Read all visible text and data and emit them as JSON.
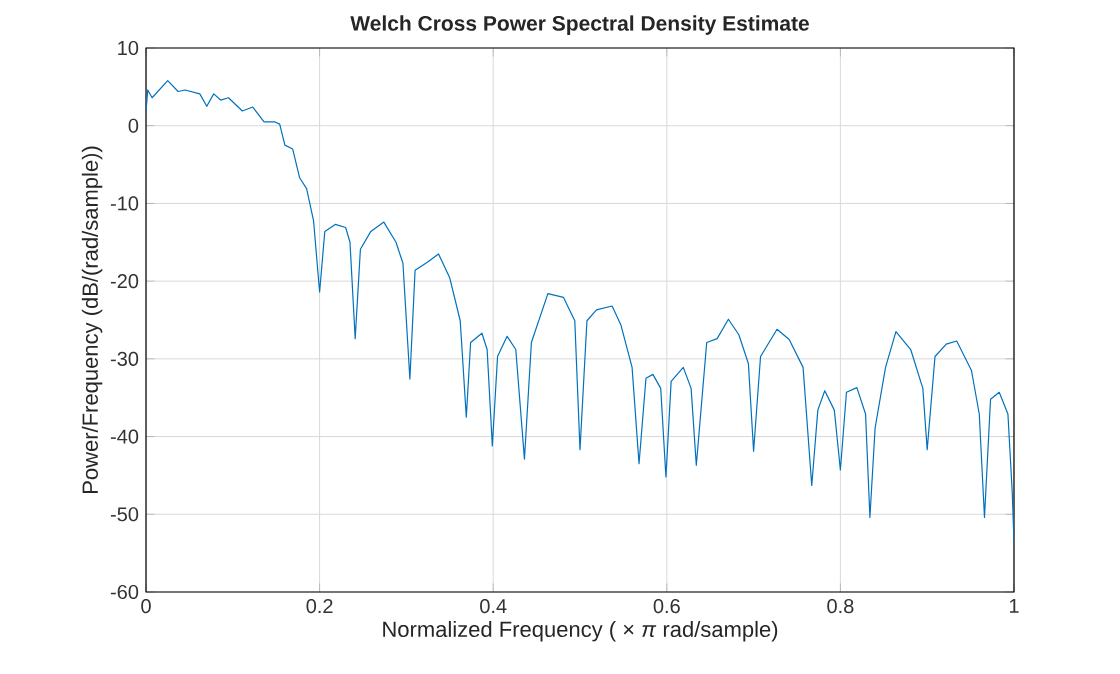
{
  "chart_data": {
    "type": "line",
    "title": "Welch Cross Power Spectral Density Estimate",
    "xlabel": "Normalized Frequency ( × *π* rad/sample)",
    "ylabel": "Power/Frequency (dB/(rad/sample))",
    "xlim": [
      0,
      1
    ],
    "ylim": [
      -60,
      10
    ],
    "xticks": [
      0,
      0.2,
      0.4,
      0.6,
      0.8,
      1
    ],
    "yticks": [
      -60,
      -50,
      -40,
      -30,
      -20,
      -10,
      0,
      10
    ],
    "grid": true,
    "series": [
      {
        "color": "#0072bd",
        "x": [
          0,
          0.002,
          0.007,
          0.025,
          0.037,
          0.045,
          0.062,
          0.07,
          0.078,
          0.086,
          0.095,
          0.111,
          0.123,
          0.136,
          0.148,
          0.154,
          0.16,
          0.169,
          0.177,
          0.185,
          0.193,
          0.2,
          0.206,
          0.218,
          0.23,
          0.235,
          0.241,
          0.247,
          0.259,
          0.274,
          0.288,
          0.296,
          0.304,
          0.31,
          0.325,
          0.337,
          0.35,
          0.362,
          0.369,
          0.374,
          0.387,
          0.393,
          0.399,
          0.405,
          0.416,
          0.426,
          0.436,
          0.444,
          0.463,
          0.481,
          0.494,
          0.5,
          0.508,
          0.519,
          0.537,
          0.547,
          0.56,
          0.568,
          0.576,
          0.584,
          0.593,
          0.599,
          0.605,
          0.619,
          0.628,
          0.634,
          0.646,
          0.658,
          0.671,
          0.683,
          0.694,
          0.7,
          0.708,
          0.727,
          0.741,
          0.757,
          0.767,
          0.774,
          0.782,
          0.793,
          0.8,
          0.807,
          0.819,
          0.829,
          0.834,
          0.84,
          0.852,
          0.864,
          0.881,
          0.895,
          0.9,
          0.909,
          0.922,
          0.934,
          0.951,
          0.96,
          0.966,
          0.973,
          0.983,
          0.993,
          0.998,
          1
        ],
        "values": [
          1.8,
          4.6,
          3.6,
          5.8,
          4.4,
          4.6,
          4.1,
          2.5,
          4.1,
          3.3,
          3.6,
          1.9,
          2.4,
          0.5,
          0.5,
          0.2,
          -2.5,
          -3,
          -6.7,
          -8.1,
          -12.2,
          -21.4,
          -13.6,
          -12.7,
          -13.1,
          -15,
          -27.4,
          -15.9,
          -13.6,
          -12.4,
          -15,
          -17.7,
          -32.6,
          -18.6,
          -17.5,
          -16.5,
          -19.6,
          -25.1,
          -37.5,
          -27.9,
          -26.7,
          -28.8,
          -41.2,
          -29.7,
          -27.1,
          -28.8,
          -42.9,
          -27.9,
          -21.6,
          -22.1,
          -25.1,
          -41.7,
          -25.1,
          -23.7,
          -23.2,
          -25.6,
          -31.1,
          -43.5,
          -32.5,
          -32,
          -33.8,
          -45.2,
          -32.9,
          -31.1,
          -33.8,
          -43.7,
          -27.9,
          -27.4,
          -24.9,
          -26.9,
          -30.6,
          -41.9,
          -29.7,
          -26.2,
          -27.5,
          -31.1,
          -46.3,
          -36.6,
          -34.1,
          -36.6,
          -44.3,
          -34.3,
          -33.7,
          -37.1,
          -50.4,
          -38.9,
          -31.1,
          -26.5,
          -28.8,
          -33.8,
          -41.7,
          -29.7,
          -28.1,
          -27.7,
          -31.5,
          -37.1,
          -50.4,
          -35.2,
          -34.3,
          -37.1,
          -47.2,
          -53.6
        ]
      }
    ]
  }
}
